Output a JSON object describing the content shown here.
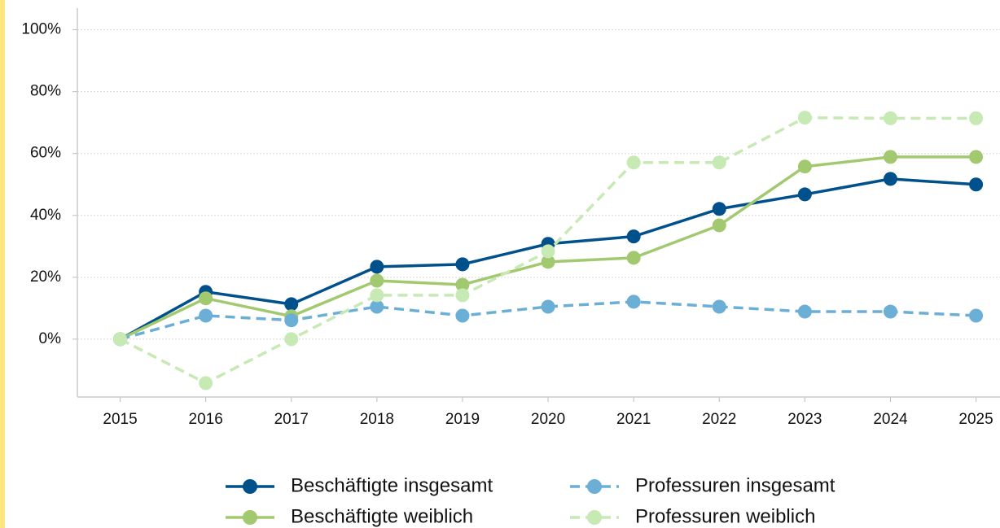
{
  "chart_data": {
    "type": "line",
    "x": [
      2015,
      2016,
      2017,
      2018,
      2019,
      2020,
      2021,
      2022,
      2023,
      2024,
      2025
    ],
    "xlim": [
      2014.5,
      2025.28
    ],
    "xticks": [
      2015,
      2016,
      2017,
      2018,
      2019,
      2020,
      2021,
      2022,
      2023,
      2024,
      2025
    ],
    "ylim": [
      -18.7,
      107
    ],
    "yticks": [
      {
        "value": 0,
        "label": "0%"
      },
      {
        "value": 20,
        "label": "20%"
      },
      {
        "value": 40,
        "label": "40%"
      },
      {
        "value": 60,
        "label": "60%"
      },
      {
        "value": 80,
        "label": "80%"
      },
      {
        "value": 100,
        "label": "100%"
      }
    ],
    "grid": true,
    "legend": "bottom",
    "series": [
      {
        "name": "Beschäftigte insgesamt",
        "color": "#00508c",
        "dashed": false,
        "values": [
          0,
          15.3,
          11.3,
          23.4,
          24.2,
          30.8,
          33.2,
          42.1,
          46.8,
          51.8,
          50.0
        ]
      },
      {
        "name": "Beschäftigte weiblich",
        "color": "#a2c96f",
        "dashed": false,
        "values": [
          0,
          13.2,
          7.4,
          18.9,
          17.6,
          25.0,
          26.3,
          36.8,
          55.8,
          58.9,
          58.9
        ]
      },
      {
        "name": "Professuren insgesamt",
        "color": "#6baed6",
        "dashed": true,
        "values": [
          0,
          7.6,
          6.1,
          10.5,
          7.6,
          10.5,
          12.1,
          10.5,
          8.9,
          8.9,
          7.6
        ]
      },
      {
        "name": "Professuren weiblich",
        "color": "#c7e9b4",
        "dashed": true,
        "values": [
          0,
          -14.2,
          0,
          14.2,
          14.2,
          28.4,
          57.1,
          57.1,
          71.6,
          71.4,
          71.4
        ]
      }
    ]
  }
}
